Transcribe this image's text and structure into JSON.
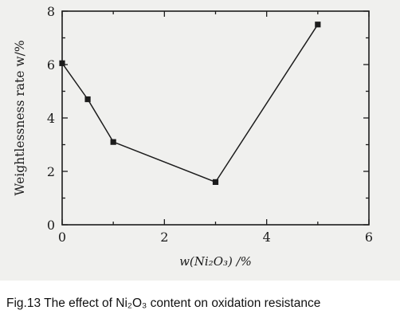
{
  "chart_data": {
    "type": "line",
    "xlabel": "w(Ni₂O₃) /%",
    "ylabel": "Weightlessness rate  w/%",
    "xlim": [
      0,
      6
    ],
    "ylim": [
      0,
      8
    ],
    "x_ticks": [
      "0",
      "2",
      "4",
      "6"
    ],
    "y_ticks": [
      "0",
      "2",
      "4",
      "6",
      "8"
    ],
    "grid": false,
    "series": [
      {
        "x": [
          0,
          0.5,
          1,
          3,
          5
        ],
        "values": [
          6.05,
          4.7,
          3.1,
          1.6,
          7.5
        ]
      }
    ]
  },
  "caption": "Fig.13 The effect of Ni₂O₃ content on oxidation resistance"
}
